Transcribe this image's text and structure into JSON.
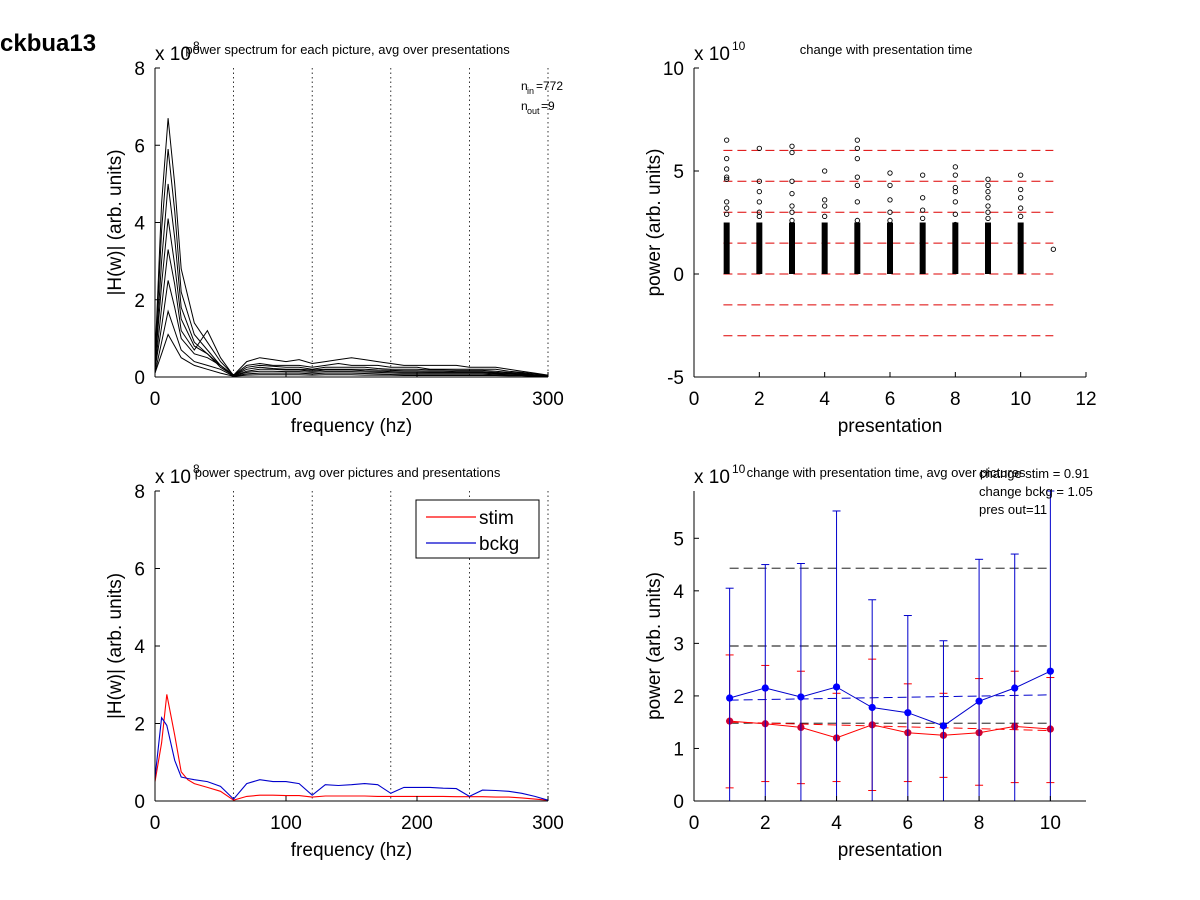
{
  "figure_title": "ckbua13",
  "colors": {
    "stim": "#ff0000",
    "bckg": "#0000cc",
    "stim_marker": "#cc0033",
    "bckg_marker": "#0000ff",
    "ref_red": "#dd0000"
  },
  "chart_data": [
    {
      "type": "line",
      "title": "power spectrum for each picture, avg over presentations",
      "xlabel": "frequency (hz)",
      "ylabel": "|H(w)| (arb. units)",
      "xlim": [
        0,
        300
      ],
      "ylim": [
        0,
        8
      ],
      "xticks": [
        "0",
        "100",
        "200",
        "300"
      ],
      "yticks": [
        "0",
        "2",
        "4",
        "6",
        "8"
      ],
      "exponent": "x 10",
      "exponent_power": "8",
      "vlines": [
        60,
        120,
        180,
        240,
        300
      ],
      "annotation_nin": "772",
      "annotation_nout": "9",
      "x": [
        0,
        5,
        10,
        15,
        20,
        30,
        40,
        50,
        60,
        70,
        80,
        90,
        100,
        110,
        120,
        130,
        140,
        150,
        160,
        170,
        180,
        190,
        200,
        210,
        220,
        230,
        240,
        250,
        260,
        270,
        280,
        290,
        300
      ],
      "series": [
        {
          "values": [
            0.5,
            4.5,
            6.7,
            5.0,
            2.8,
            1.4,
            0.9,
            0.4,
            0.05,
            0.4,
            0.5,
            0.45,
            0.4,
            0.45,
            0.35,
            0.4,
            0.45,
            0.5,
            0.45,
            0.4,
            0.35,
            0.3,
            0.3,
            0.3,
            0.3,
            0.3,
            0.25,
            0.25,
            0.25,
            0.2,
            0.15,
            0.1,
            0.05
          ]
        },
        {
          "values": [
            0.4,
            3.8,
            5.9,
            4.3,
            2.2,
            1.1,
            0.7,
            0.3,
            0.05,
            0.3,
            0.35,
            0.3,
            0.3,
            0.3,
            0.25,
            0.3,
            0.35,
            0.3,
            0.3,
            0.3,
            0.25,
            0.25,
            0.25,
            0.2,
            0.2,
            0.2,
            0.2,
            0.2,
            0.2,
            0.15,
            0.12,
            0.08,
            0.04
          ]
        },
        {
          "values": [
            0.3,
            3.0,
            5.0,
            3.6,
            1.8,
            0.9,
            0.6,
            0.25,
            0.04,
            0.25,
            0.3,
            0.28,
            0.25,
            0.25,
            0.2,
            0.25,
            0.25,
            0.25,
            0.25,
            0.22,
            0.2,
            0.2,
            0.2,
            0.18,
            0.18,
            0.17,
            0.17,
            0.17,
            0.15,
            0.12,
            0.1,
            0.06,
            0.03
          ]
        },
        {
          "values": [
            0.3,
            2.4,
            4.1,
            2.9,
            1.5,
            0.8,
            0.6,
            0.3,
            0.04,
            0.2,
            0.25,
            0.22,
            0.2,
            0.2,
            0.18,
            0.2,
            0.2,
            0.2,
            0.2,
            0.18,
            0.17,
            0.16,
            0.16,
            0.15,
            0.15,
            0.14,
            0.14,
            0.14,
            0.12,
            0.1,
            0.08,
            0.05,
            0.03
          ]
        },
        {
          "values": [
            0.2,
            1.8,
            3.3,
            2.4,
            1.2,
            0.7,
            1.2,
            0.5,
            0.03,
            0.15,
            0.2,
            0.2,
            0.18,
            0.18,
            0.15,
            0.18,
            0.18,
            0.18,
            0.16,
            0.15,
            0.14,
            0.13,
            0.13,
            0.12,
            0.12,
            0.12,
            0.12,
            0.12,
            0.1,
            0.08,
            0.07,
            0.04,
            0.02
          ]
        },
        {
          "values": [
            0.2,
            1.3,
            2.5,
            1.8,
            1.0,
            0.6,
            0.5,
            0.3,
            0.03,
            0.12,
            0.15,
            0.15,
            0.14,
            0.14,
            0.12,
            0.14,
            0.14,
            0.14,
            0.13,
            0.12,
            0.11,
            0.1,
            0.1,
            0.1,
            0.1,
            0.1,
            0.1,
            0.1,
            0.08,
            0.07,
            0.06,
            0.03,
            0.02
          ]
        },
        {
          "values": [
            0.1,
            0.9,
            1.7,
            1.2,
            0.7,
            0.4,
            0.3,
            0.2,
            0.02,
            0.08,
            0.1,
            0.1,
            0.1,
            0.1,
            0.08,
            0.1,
            0.1,
            0.1,
            0.09,
            0.08,
            0.07,
            0.07,
            0.07,
            0.07,
            0.07,
            0.07,
            0.07,
            0.07,
            0.06,
            0.05,
            0.04,
            0.02,
            0.01
          ]
        },
        {
          "values": [
            0.1,
            0.6,
            1.1,
            0.8,
            0.5,
            0.3,
            0.2,
            0.1,
            0.02,
            0.05,
            0.06,
            0.06,
            0.06,
            0.06,
            0.05,
            0.06,
            0.06,
            0.06,
            0.05,
            0.05,
            0.05,
            0.04,
            0.04,
            0.04,
            0.04,
            0.04,
            0.04,
            0.04,
            0.04,
            0.03,
            0.03,
            0.02,
            0.01
          ]
        }
      ]
    },
    {
      "type": "scatter",
      "title": "change with presentation time",
      "xlabel": "presentation",
      "ylabel": "power (arb. units)",
      "xlim": [
        0,
        12
      ],
      "ylim": [
        -5,
        10
      ],
      "xticks": [
        "0",
        "2",
        "4",
        "6",
        "8",
        "10",
        "12"
      ],
      "yticks": [
        "-5",
        "0",
        "5",
        "10"
      ],
      "exponent": "x 10",
      "exponent_power": "10",
      "hlines": [
        -3.0,
        -1.5,
        0.0,
        1.5,
        3.0,
        4.5,
        6.0
      ],
      "points": [
        [
          1,
          6.5
        ],
        [
          1,
          5.6
        ],
        [
          1,
          5.1
        ],
        [
          1,
          4.7
        ],
        [
          1,
          4.6
        ],
        [
          1,
          3.5
        ],
        [
          1,
          3.2
        ],
        [
          1,
          2.9
        ],
        [
          2,
          6.1
        ],
        [
          2,
          4.5
        ],
        [
          2,
          4.0
        ],
        [
          2,
          3.5
        ],
        [
          2,
          3.0
        ],
        [
          2,
          2.8
        ],
        [
          3,
          6.2
        ],
        [
          3,
          5.9
        ],
        [
          3,
          4.5
        ],
        [
          3,
          3.9
        ],
        [
          3,
          3.3
        ],
        [
          3,
          3.0
        ],
        [
          3,
          2.6
        ],
        [
          4,
          5.0
        ],
        [
          4,
          3.6
        ],
        [
          4,
          3.3
        ],
        [
          4,
          2.8
        ],
        [
          5,
          6.5
        ],
        [
          5,
          6.1
        ],
        [
          5,
          5.6
        ],
        [
          5,
          4.7
        ],
        [
          5,
          4.3
        ],
        [
          5,
          3.5
        ],
        [
          5,
          2.6
        ],
        [
          6,
          4.9
        ],
        [
          6,
          4.3
        ],
        [
          6,
          3.6
        ],
        [
          6,
          3.0
        ],
        [
          6,
          2.6
        ],
        [
          7,
          4.8
        ],
        [
          7,
          3.7
        ],
        [
          7,
          3.1
        ],
        [
          7,
          2.7
        ],
        [
          8,
          5.2
        ],
        [
          8,
          4.8
        ],
        [
          8,
          4.2
        ],
        [
          8,
          4.0
        ],
        [
          8,
          3.5
        ],
        [
          8,
          2.9
        ],
        [
          8,
          2.4
        ],
        [
          9,
          4.6
        ],
        [
          9,
          4.3
        ],
        [
          9,
          4.0
        ],
        [
          9,
          3.7
        ],
        [
          9,
          3.3
        ],
        [
          9,
          3.0
        ],
        [
          9,
          2.7
        ],
        [
          10,
          4.8
        ],
        [
          10,
          4.1
        ],
        [
          10,
          3.7
        ],
        [
          10,
          3.2
        ],
        [
          10,
          2.8
        ],
        [
          11,
          1.2
        ]
      ],
      "dense_range": [
        0,
        2.5
      ],
      "dense_presentations": [
        1,
        2,
        3,
        4,
        5,
        6,
        7,
        8,
        9,
        10
      ]
    },
    {
      "type": "line",
      "title": "power spectrum, avg over pictures and presentations",
      "xlabel": "frequency (hz)",
      "ylabel": "|H(w)| (arb. units)",
      "xlim": [
        0,
        300
      ],
      "ylim": [
        0,
        8
      ],
      "xticks": [
        "0",
        "100",
        "200",
        "300"
      ],
      "yticks": [
        "0",
        "2",
        "4",
        "6",
        "8"
      ],
      "exponent": "x 10",
      "exponent_power": "8",
      "vlines": [
        60,
        120,
        180,
        240,
        300
      ],
      "legend": [
        "stim",
        "bckg"
      ],
      "legend_position": "top-right",
      "x": [
        0,
        5,
        9,
        15,
        20,
        25,
        30,
        40,
        50,
        60,
        70,
        80,
        90,
        100,
        110,
        120,
        130,
        140,
        150,
        160,
        170,
        180,
        190,
        200,
        210,
        220,
        230,
        240,
        250,
        260,
        270,
        280,
        290,
        300
      ],
      "series": [
        {
          "name": "stim",
          "values": [
            0.5,
            1.5,
            2.75,
            1.7,
            0.75,
            0.55,
            0.45,
            0.35,
            0.25,
            0.02,
            0.12,
            0.15,
            0.15,
            0.14,
            0.14,
            0.1,
            0.13,
            0.13,
            0.13,
            0.13,
            0.12,
            0.12,
            0.12,
            0.12,
            0.12,
            0.12,
            0.11,
            0.11,
            0.11,
            0.1,
            0.1,
            0.08,
            0.05,
            0.02
          ]
        },
        {
          "name": "bckg",
          "values": [
            0.6,
            2.15,
            1.95,
            1.05,
            0.62,
            0.58,
            0.55,
            0.5,
            0.38,
            0.05,
            0.45,
            0.55,
            0.5,
            0.5,
            0.45,
            0.15,
            0.42,
            0.4,
            0.42,
            0.45,
            0.42,
            0.2,
            0.35,
            0.35,
            0.35,
            0.33,
            0.32,
            0.12,
            0.28,
            0.27,
            0.25,
            0.2,
            0.12,
            0.02
          ]
        }
      ]
    },
    {
      "type": "line",
      "title": "change with presentation time, avg over pictures",
      "xlabel": "presentation",
      "ylabel": "power (arb. units)",
      "xlim": [
        0,
        11
      ],
      "ylim": [
        0,
        5.9
      ],
      "xticks": [
        "0",
        "2",
        "4",
        "6",
        "8",
        "10"
      ],
      "yticks": [
        "0",
        "1",
        "2",
        "3",
        "4",
        "5"
      ],
      "exponent": "x 10",
      "exponent_power": "10",
      "annotations": [
        "change stim = 0.91",
        "change bckg = 1.05",
        "pres out=11"
      ],
      "hlines": [
        1.48,
        2.95,
        4.43
      ],
      "x": [
        1,
        2,
        3,
        4,
        5,
        6,
        7,
        8,
        9,
        10
      ],
      "series": [
        {
          "name": "stim",
          "values": [
            1.52,
            1.47,
            1.4,
            1.2,
            1.45,
            1.3,
            1.25,
            1.3,
            1.42,
            1.37
          ],
          "err_low": [
            0.25,
            0.37,
            0.33,
            0.37,
            0.2,
            0.37,
            0.45,
            0.3,
            0.35,
            0.35
          ],
          "err_high": [
            2.78,
            2.58,
            2.47,
            2.05,
            2.7,
            2.23,
            2.05,
            2.33,
            2.47,
            2.35
          ],
          "fit": [
            1.5,
            1.34
          ]
        },
        {
          "name": "bckg",
          "values": [
            1.96,
            2.15,
            1.98,
            2.17,
            1.78,
            1.68,
            1.43,
            1.9,
            2.15,
            2.47
          ],
          "err_low": [
            0.0,
            0.0,
            0.0,
            0.0,
            0.0,
            0.0,
            0.0,
            0.0,
            0.0,
            0.0
          ],
          "err_high": [
            4.05,
            4.5,
            4.52,
            5.52,
            3.83,
            3.53,
            3.05,
            4.6,
            4.7,
            5.9
          ],
          "fit": [
            1.92,
            2.02
          ]
        }
      ]
    }
  ]
}
